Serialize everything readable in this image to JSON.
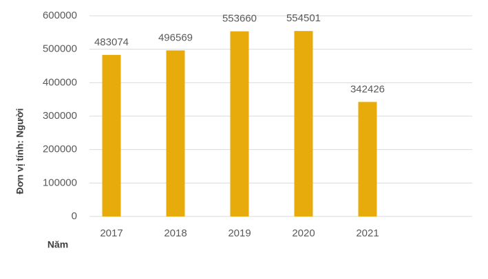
{
  "chart_data": {
    "type": "bar",
    "x_label": "Năm",
    "y_label": "Đơn vị tính: Người",
    "categories": [
      "2017",
      "2018",
      "2019",
      "2020",
      "2021"
    ],
    "values": [
      483074,
      496569,
      553660,
      554501,
      342426
    ],
    "color": "#e8ab0c",
    "ylim": [
      0,
      600000
    ],
    "yticks": [
      0,
      100000,
      200000,
      300000,
      400000,
      500000,
      600000
    ],
    "grid": true
  }
}
